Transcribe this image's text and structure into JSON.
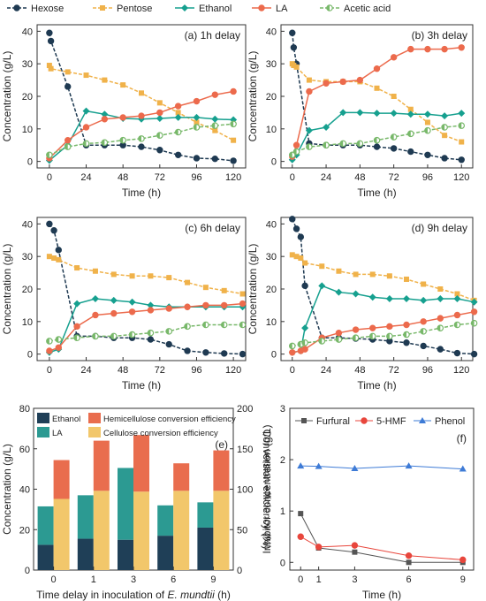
{
  "legend_top": [
    {
      "name": "Hexose",
      "color": "#1f3a52",
      "style": "dash",
      "marker": "circle"
    },
    {
      "name": "Pentose",
      "color": "#f0b24a",
      "style": "dash",
      "marker": "square"
    },
    {
      "name": "Ethanol",
      "color": "#16a08f",
      "style": "solid",
      "marker": "diamond"
    },
    {
      "name": "LA",
      "color": "#ec6a4c",
      "style": "solid",
      "marker": "circle"
    },
    {
      "name": "Acetic acid",
      "color": "#78b86a",
      "style": "dash",
      "marker": "halfcircle"
    }
  ],
  "chart_data": [
    {
      "type": "line",
      "panel_label": "(a) 1h delay",
      "xlabel": "Time (h)",
      "ylabel": "Concentration (g/L)",
      "xlim": [
        -8,
        128
      ],
      "ylim": [
        -2,
        42
      ],
      "xticks": [
        0,
        24,
        48,
        72,
        96,
        120
      ],
      "yticks": [
        0,
        10,
        20,
        30,
        40
      ],
      "series": [
        {
          "name": "Hexose",
          "x": [
            0,
            1,
            12,
            24,
            36,
            48,
            60,
            72,
            84,
            96,
            108,
            120
          ],
          "y": [
            39.5,
            37.0,
            23.0,
            5.0,
            5.0,
            5.0,
            4.5,
            3.5,
            2.0,
            1.0,
            0.8,
            0.2
          ]
        },
        {
          "name": "Pentose",
          "x": [
            0,
            1,
            12,
            24,
            36,
            48,
            60,
            72,
            84,
            96,
            108,
            120
          ],
          "y": [
            29.5,
            28.5,
            27.5,
            26.5,
            25.0,
            23.5,
            21.0,
            18.0,
            15.0,
            12.0,
            9.5,
            6.5
          ]
        },
        {
          "name": "Ethanol",
          "x": [
            0,
            12,
            24,
            36,
            48,
            60,
            72,
            84,
            96,
            108,
            120
          ],
          "y": [
            0.3,
            5.0,
            15.5,
            14.5,
            13.2,
            13.0,
            13.2,
            13.5,
            13.5,
            13.0,
            12.8
          ]
        },
        {
          "name": "LA",
          "x": [
            0,
            12,
            24,
            36,
            48,
            60,
            72,
            84,
            96,
            108,
            120
          ],
          "y": [
            1.0,
            6.5,
            10.5,
            13.0,
            13.5,
            14.0,
            15.0,
            17.0,
            18.5,
            20.5,
            21.5
          ]
        },
        {
          "name": "Acetic acid",
          "x": [
            0,
            12,
            24,
            36,
            48,
            60,
            72,
            84,
            96,
            108,
            120
          ],
          "y": [
            2.0,
            4.5,
            5.5,
            5.8,
            6.5,
            7.0,
            8.0,
            9.0,
            10.5,
            11.0,
            11.5
          ]
        }
      ]
    },
    {
      "type": "line",
      "panel_label": "(b) 3h delay",
      "xlabel": "Time (h)",
      "ylabel": "Concentration (g/L)",
      "xlim": [
        -8,
        128
      ],
      "ylim": [
        -2,
        42
      ],
      "xticks": [
        0,
        24,
        48,
        72,
        96,
        120
      ],
      "yticks": [
        0,
        10,
        20,
        30,
        40
      ],
      "series": [
        {
          "name": "Hexose",
          "x": [
            0,
            1,
            3,
            12,
            24,
            36,
            48,
            60,
            72,
            84,
            96,
            108,
            120
          ],
          "y": [
            39.5,
            35.0,
            30.0,
            5.5,
            5.0,
            5.0,
            5.0,
            4.5,
            4.0,
            3.0,
            2.0,
            1.0,
            0.5
          ]
        },
        {
          "name": "Pentose",
          "x": [
            0,
            1,
            3,
            12,
            24,
            36,
            48,
            60,
            72,
            84,
            96,
            108,
            120
          ],
          "y": [
            30.0,
            29.5,
            29.0,
            25.0,
            24.5,
            24.5,
            24.5,
            22.5,
            20.0,
            16.0,
            12.0,
            8.0,
            6.0
          ]
        },
        {
          "name": "Ethanol",
          "x": [
            0,
            3,
            12,
            24,
            36,
            48,
            60,
            72,
            84,
            96,
            108,
            120
          ],
          "y": [
            0.5,
            2.0,
            9.5,
            10.5,
            15.0,
            15.0,
            14.8,
            14.8,
            14.5,
            14.5,
            14.0,
            14.8
          ]
        },
        {
          "name": "LA",
          "x": [
            0,
            3,
            12,
            24,
            36,
            48,
            60,
            72,
            84,
            96,
            108,
            120
          ],
          "y": [
            1.5,
            5.0,
            21.5,
            24.0,
            24.5,
            25.0,
            28.5,
            32.0,
            34.5,
            34.5,
            34.5,
            35.0
          ]
        },
        {
          "name": "Acetic acid",
          "x": [
            0,
            3,
            12,
            24,
            36,
            48,
            60,
            72,
            84,
            96,
            108,
            120
          ],
          "y": [
            2.0,
            3.0,
            4.5,
            5.0,
            5.5,
            5.5,
            6.5,
            7.5,
            8.5,
            9.5,
            10.5,
            11.0
          ]
        }
      ]
    },
    {
      "type": "line",
      "panel_label": "(c) 6h delay",
      "xlabel": "Time (h)",
      "ylabel": "Concentration (g/L)",
      "xlim": [
        -8,
        128
      ],
      "ylim": [
        -2,
        42
      ],
      "xticks": [
        0,
        24,
        48,
        72,
        96,
        120
      ],
      "yticks": [
        0,
        10,
        20,
        30,
        40
      ],
      "series": [
        {
          "name": "Hexose",
          "x": [
            0,
            3,
            6,
            18,
            30,
            42,
            54,
            66,
            78,
            90,
            102,
            114,
            126
          ],
          "y": [
            40.0,
            38.0,
            32.0,
            5.5,
            5.5,
            5.0,
            5.0,
            4.5,
            3.0,
            1.0,
            0.5,
            0.2,
            0.0
          ]
        },
        {
          "name": "Pentose",
          "x": [
            0,
            3,
            6,
            18,
            30,
            42,
            54,
            66,
            78,
            90,
            102,
            114,
            126
          ],
          "y": [
            30.0,
            29.5,
            29.0,
            26.5,
            25.5,
            24.5,
            24.0,
            24.0,
            23.5,
            22.0,
            20.5,
            19.5,
            18.5
          ]
        },
        {
          "name": "Ethanol",
          "x": [
            0,
            6,
            18,
            30,
            42,
            54,
            66,
            78,
            90,
            102,
            114,
            126
          ],
          "y": [
            0.5,
            1.5,
            15.5,
            17.0,
            16.5,
            16.0,
            15.0,
            14.5,
            14.5,
            14.5,
            14.5,
            14.5
          ]
        },
        {
          "name": "LA",
          "x": [
            0,
            6,
            18,
            30,
            42,
            54,
            66,
            78,
            90,
            102,
            114,
            126
          ],
          "y": [
            1.0,
            2.0,
            8.5,
            12.0,
            12.5,
            13.0,
            13.5,
            14.0,
            14.5,
            15.0,
            15.0,
            15.5
          ]
        },
        {
          "name": "Acetic acid",
          "x": [
            0,
            6,
            18,
            30,
            42,
            54,
            66,
            78,
            90,
            102,
            114,
            126
          ],
          "y": [
            4.0,
            4.5,
            5.0,
            5.5,
            5.5,
            6.0,
            6.5,
            7.0,
            8.5,
            9.0,
            9.0,
            9.0
          ]
        }
      ]
    },
    {
      "type": "line",
      "panel_label": "(d) 9h delay",
      "xlabel": "Time (h)",
      "ylabel": "Concentration (g/L)",
      "xlim": [
        -8,
        128
      ],
      "ylim": [
        -2,
        42
      ],
      "xticks": [
        0,
        24,
        48,
        72,
        96,
        120
      ],
      "yticks": [
        0,
        10,
        20,
        30,
        40
      ],
      "series": [
        {
          "name": "Hexose",
          "x": [
            0,
            3,
            6,
            9,
            21,
            33,
            45,
            57,
            69,
            81,
            93,
            105,
            117,
            129
          ],
          "y": [
            41.5,
            38.5,
            36.0,
            21.0,
            5.0,
            5.0,
            4.8,
            4.5,
            4.0,
            3.5,
            2.5,
            1.5,
            0.3,
            0.0
          ]
        },
        {
          "name": "Pentose",
          "x": [
            0,
            3,
            6,
            9,
            21,
            33,
            45,
            57,
            69,
            81,
            93,
            105,
            117,
            129
          ],
          "y": [
            30.5,
            30.0,
            29.5,
            28.0,
            27.0,
            25.5,
            24.5,
            24.5,
            24.0,
            23.0,
            21.5,
            20.0,
            18.5,
            16.5
          ]
        },
        {
          "name": "Ethanol",
          "x": [
            0,
            6,
            9,
            21,
            33,
            45,
            57,
            69,
            81,
            93,
            105,
            117,
            129
          ],
          "y": [
            0.5,
            1.0,
            8.0,
            21.0,
            19.0,
            18.5,
            17.5,
            17.0,
            17.0,
            16.5,
            17.0,
            17.0,
            16.0
          ]
        },
        {
          "name": "LA",
          "x": [
            0,
            6,
            9,
            21,
            33,
            45,
            57,
            69,
            81,
            93,
            105,
            117,
            129
          ],
          "y": [
            0.5,
            1.0,
            1.5,
            5.0,
            6.5,
            7.5,
            8.0,
            8.5,
            9.0,
            10.0,
            11.0,
            12.0,
            13.0
          ]
        },
        {
          "name": "Acetic acid",
          "x": [
            0,
            6,
            9,
            21,
            33,
            45,
            57,
            69,
            81,
            93,
            105,
            117,
            129
          ],
          "y": [
            2.5,
            3.0,
            3.5,
            4.0,
            4.5,
            5.0,
            5.5,
            5.5,
            6.0,
            7.0,
            8.0,
            9.0,
            9.5
          ]
        }
      ]
    },
    {
      "type": "bar",
      "panel_label": "(e)",
      "xlabel_prefix": "Time delay in inoculation of ",
      "xlabel_italic": "E. mundtii",
      "xlabel_suffix": " (h)",
      "ylabel": "Concentration (g/L)",
      "ylabel_right": "Conversion efficiency (%)",
      "categories": [
        "0",
        "1",
        "3",
        "6",
        "9"
      ],
      "ylim": [
        0,
        80
      ],
      "ylim_right": [
        0,
        200
      ],
      "yticks": [
        0,
        20,
        40,
        60,
        80
      ],
      "yticks_right": [
        0,
        50,
        100,
        150,
        200
      ],
      "series": [
        {
          "name": "Ethanol",
          "axis": "left",
          "stack": "conc",
          "color": "#1f3f57",
          "values": [
            12.5,
            15.5,
            15.0,
            17.0,
            21.0
          ]
        },
        {
          "name": "LA",
          "axis": "left",
          "stack": "conc",
          "color": "#2c9a92",
          "values": [
            19.0,
            21.5,
            35.5,
            15.0,
            12.5
          ]
        },
        {
          "name": "Cellulose conversion efficiency",
          "axis": "right",
          "stack": "eff",
          "color": "#f2c76b",
          "values": [
            88,
            98,
            97,
            98,
            98
          ]
        },
        {
          "name": "Hemicellulose conversion efficiency",
          "axis": "right",
          "stack": "eff",
          "color": "#e96d4e",
          "values": [
            48,
            62,
            70,
            34,
            50
          ]
        }
      ]
    },
    {
      "type": "line",
      "panel_label": "(f)",
      "xlabel": "Time (h)",
      "ylabel": "Inhibitor concentration (g/L)",
      "xlim": [
        -0.6,
        9.6
      ],
      "ylim": [
        -0.15,
        3.0
      ],
      "xticks": [
        0,
        1,
        3,
        6,
        9
      ],
      "yticks": [
        0,
        1,
        2,
        3
      ],
      "series": [
        {
          "name": "Furfural",
          "color": "#555555",
          "marker": "square",
          "x": [
            0,
            1,
            3,
            6,
            9
          ],
          "y": [
            0.95,
            0.28,
            0.2,
            0.0,
            0.0
          ]
        },
        {
          "name": "5-HMF",
          "color": "#e8463c",
          "marker": "circle",
          "x": [
            0,
            1,
            3,
            6,
            9
          ],
          "y": [
            0.5,
            0.3,
            0.33,
            0.13,
            0.05
          ]
        },
        {
          "name": "Phenol",
          "color": "#3e7bd6",
          "marker": "triangle",
          "x": [
            0,
            1,
            3,
            6,
            9
          ],
          "y": [
            1.88,
            1.87,
            1.83,
            1.88,
            1.82
          ]
        }
      ]
    }
  ]
}
